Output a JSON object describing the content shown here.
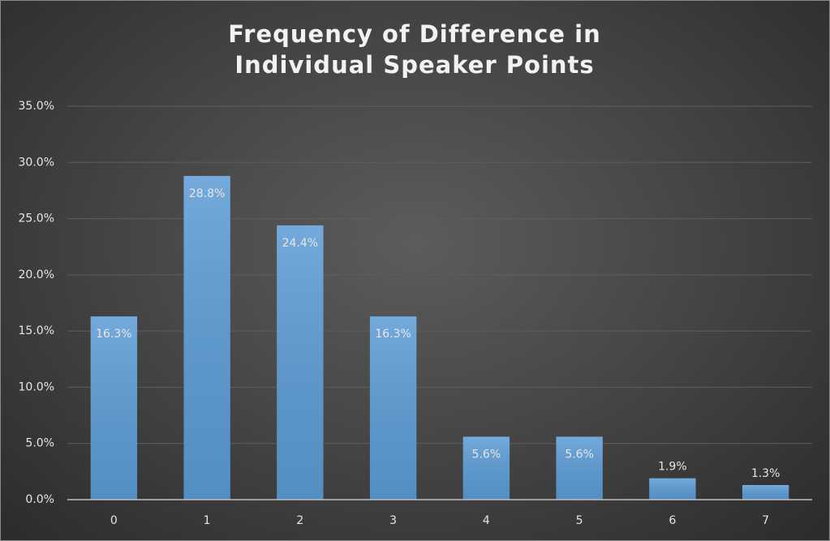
{
  "chart_data": {
    "type": "bar",
    "title": "Frequency of Difference in Individual Speaker Points",
    "categories": [
      "0",
      "1",
      "2",
      "3",
      "4",
      "5",
      "6",
      "7"
    ],
    "values": [
      16.3,
      28.8,
      24.4,
      16.3,
      5.6,
      5.6,
      1.9,
      1.3
    ],
    "value_labels": [
      "16.3%",
      "28.8%",
      "24.4%",
      "16.3%",
      "5.6%",
      "5.6%",
      "1.9%",
      "1.3%"
    ],
    "color": "#5b9bd5",
    "ylim": [
      0,
      35
    ],
    "yticks": [
      {
        "value": 0,
        "label": "0.0%"
      },
      {
        "value": 5,
        "label": "5.0%"
      },
      {
        "value": 10,
        "label": "10.0%"
      },
      {
        "value": 15,
        "label": "15.0%"
      },
      {
        "value": 20,
        "label": "20.0%"
      },
      {
        "value": 25,
        "label": "25.0%"
      },
      {
        "value": 30,
        "label": "30.0%"
      },
      {
        "value": 35,
        "label": "35.0%"
      }
    ],
    "grid": true
  }
}
